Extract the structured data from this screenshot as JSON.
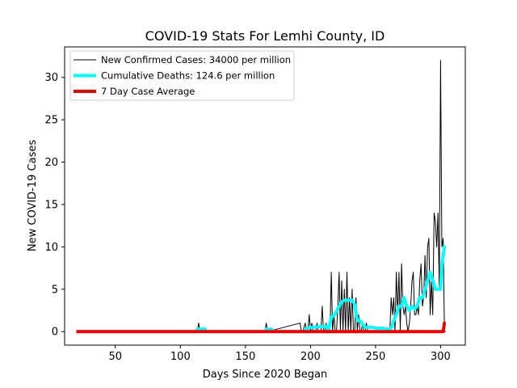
{
  "chart_data": {
    "type": "line",
    "title": "COVID-19 Stats For Lemhi County, ID",
    "xlabel": "Days Since 2020 Began",
    "ylabel": "New COVID-19 Cases",
    "xlim": [
      11,
      319
    ],
    "ylim": [
      -1.6,
      33.6
    ],
    "xticks": [
      50,
      100,
      150,
      200,
      250,
      300
    ],
    "yticks": [
      0,
      5,
      10,
      15,
      20,
      25,
      30
    ],
    "grid": false,
    "legend_position": "top-left",
    "series": [
      {
        "name": "New Confirmed Cases: 34000 per million",
        "color": "#000000",
        "line_width": 1,
        "x": [
          20,
          113,
          114,
          115,
          116,
          165,
          166,
          167,
          192,
          193,
          194,
          196,
          197,
          198,
          199,
          200,
          201,
          202,
          203,
          204,
          205,
          206,
          207,
          208,
          209,
          210,
          211,
          212,
          213,
          214,
          215,
          216,
          217,
          218,
          219,
          220,
          221,
          222,
          223,
          224,
          225,
          226,
          227,
          228,
          229,
          230,
          231,
          232,
          233,
          234,
          235,
          236,
          237,
          238,
          239,
          240,
          241,
          242,
          243,
          244,
          245,
          246,
          247,
          248,
          250,
          255,
          258,
          261,
          262,
          263,
          264,
          265,
          266,
          267,
          268,
          269,
          270,
          271,
          272,
          273,
          274,
          275,
          276,
          277,
          278,
          279,
          280,
          281,
          282,
          283,
          284,
          285,
          286,
          287,
          288,
          289,
          290,
          291,
          292,
          293,
          294,
          295,
          296,
          297,
          298,
          299,
          300,
          301,
          302,
          303,
          304
        ],
        "y": [
          0,
          0,
          1,
          0,
          0,
          0,
          1,
          0,
          1,
          0,
          0,
          1,
          0,
          0,
          2,
          0,
          1,
          0,
          0,
          0,
          1,
          0,
          0,
          0,
          3,
          0,
          0,
          1,
          0,
          0,
          0,
          7,
          0,
          2,
          0,
          0,
          3,
          7,
          0,
          6,
          0,
          5,
          0,
          7,
          0,
          4,
          0,
          5,
          0,
          0,
          4,
          0,
          2,
          0,
          0,
          1,
          0,
          0,
          1,
          0,
          0,
          0,
          0,
          0,
          0,
          0,
          0,
          0,
          4,
          2,
          4,
          0,
          7,
          2,
          7,
          0,
          8,
          3,
          2,
          3,
          1,
          0,
          1,
          3,
          6,
          7,
          2,
          2,
          3,
          2,
          6,
          8,
          3,
          4,
          9,
          4,
          10,
          11,
          2,
          6,
          2,
          14,
          13,
          10,
          14,
          5,
          32,
          10,
          11,
          0,
          0
        ]
      },
      {
        "name": "Cumulative Deaths: 124.6 per million",
        "color": "#00ffff",
        "line_width": 4,
        "x": [
          20,
          112,
          113,
          118,
          119,
          120,
          121,
          122,
          165,
          166,
          170,
          171,
          172,
          195,
          196,
          200,
          210,
          213,
          214,
          215,
          216,
          218,
          220,
          222,
          224,
          226,
          228,
          230,
          232,
          234,
          236,
          238,
          240,
          242,
          244,
          246,
          248,
          250,
          252,
          254,
          256,
          258,
          260,
          262,
          264,
          266,
          268,
          270,
          272,
          274,
          276,
          278,
          280,
          282,
          284,
          286,
          288,
          290,
          292,
          294,
          296,
          298,
          300,
          301,
          302,
          303,
          304
        ],
        "y": [
          0,
          0,
          0.3,
          0.3,
          0.3,
          0,
          0,
          0,
          0,
          0.3,
          0.3,
          0,
          0,
          0,
          0.3,
          0.5,
          0.6,
          0.6,
          0.3,
          1,
          1.7,
          1.9,
          2.4,
          3,
          3.5,
          3.7,
          3.7,
          3.7,
          3.7,
          3.2,
          1.3,
          1.3,
          0.9,
          0.5,
          0.5,
          0.5,
          0.5,
          0.4,
          0.4,
          0.4,
          0.4,
          0.3,
          0.3,
          0.4,
          1.3,
          2,
          3,
          3,
          4,
          3,
          2.5,
          3,
          2.7,
          3,
          4,
          4,
          5,
          6,
          7,
          6,
          5,
          5,
          5,
          8,
          9,
          10,
          10
        ]
      },
      {
        "name": "7 Day Case Average",
        "color": "#ee0000",
        "line_width": 4,
        "x": [
          20,
          302,
          303,
          304
        ],
        "y": [
          0,
          0,
          1,
          1
        ]
      }
    ]
  }
}
